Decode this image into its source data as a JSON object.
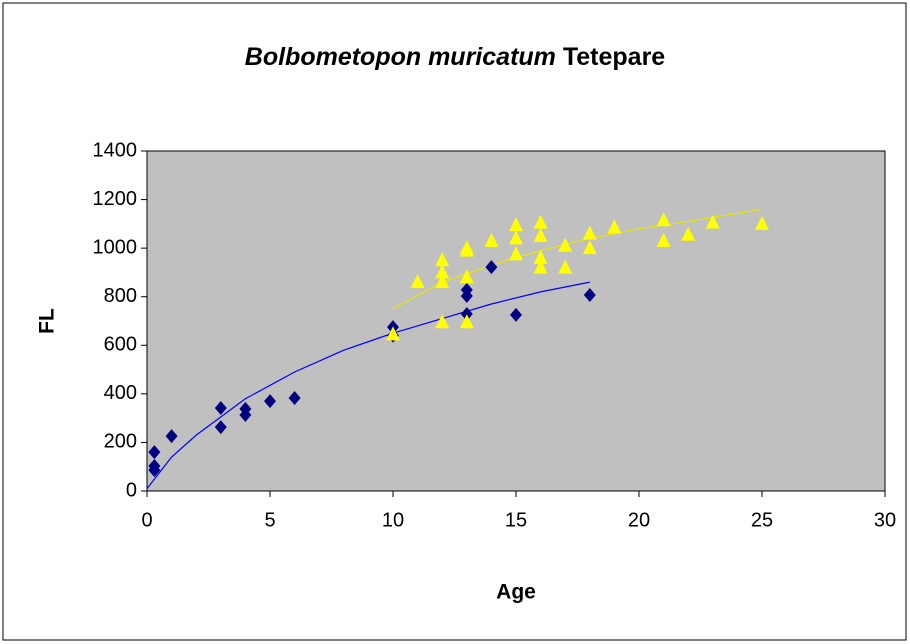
{
  "chart_data": {
    "type": "scatter",
    "title_parts": [
      "Bolbometopon muricatum",
      "Tetepare"
    ],
    "x_label": "Age",
    "y_label": "FL",
    "xlim": [
      0,
      30
    ],
    "xticks": [
      0,
      5,
      10,
      15,
      20,
      25,
      30
    ],
    "ylim": [
      0,
      1400
    ],
    "yticks": [
      0,
      200,
      400,
      600,
      800,
      1000,
      1200,
      1400
    ],
    "grid": false,
    "plot_background": "#c0c0c0",
    "series": [
      {
        "color": "#000080",
        "marker": "diamond",
        "x": [
          0.3,
          0.3,
          0.3,
          1,
          3,
          3,
          4,
          4,
          5,
          6,
          10,
          10,
          13,
          13,
          13,
          14,
          15,
          18
        ],
        "values": [
          86,
          103,
          160,
          226,
          342,
          263,
          338,
          313,
          370,
          383,
          675,
          640,
          828,
          803,
          729,
          922,
          725,
          807
        ]
      },
      {
        "color": "#ffff00",
        "marker": "triangle",
        "x": [
          10,
          11,
          12,
          12,
          12,
          12,
          13,
          13,
          13,
          13,
          14,
          15,
          15,
          15,
          16,
          16,
          16,
          16,
          17,
          17,
          18,
          18,
          19,
          21,
          21,
          22,
          23,
          25
        ],
        "values": [
          645,
          860,
          950,
          900,
          860,
          695,
          1000,
          990,
          880,
          695,
          1030,
          1095,
          1040,
          975,
          1105,
          1050,
          960,
          920,
          1010,
          920,
          1060,
          1000,
          1085,
          1115,
          1030,
          1055,
          1105,
          1100
        ]
      }
    ],
    "trendlines": [
      {
        "color": "#0000ff",
        "x": [
          0,
          1,
          2,
          4,
          6,
          8,
          10,
          12,
          14,
          16,
          18
        ],
        "values": [
          10,
          140,
          230,
          380,
          490,
          580,
          650,
          710,
          770,
          820,
          860
        ]
      },
      {
        "color": "#e8e800",
        "x": [
          10,
          12,
          14,
          16,
          18,
          20,
          22,
          25
        ],
        "values": [
          750,
          860,
          930,
          990,
          1040,
          1080,
          1110,
          1160
        ]
      }
    ]
  }
}
